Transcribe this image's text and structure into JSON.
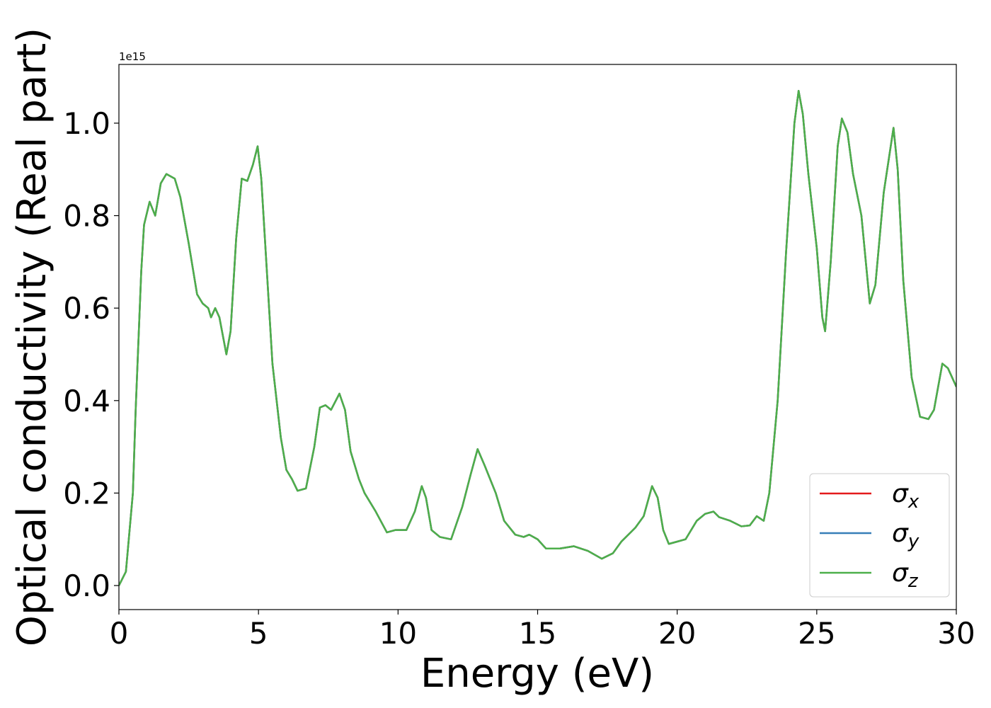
{
  "chart_data": {
    "type": "line",
    "xlabel": "Energy (eV)",
    "ylabel": "Optical conductivity (Real part)",
    "y_offset_label": "1e15",
    "x": [
      0,
      0.25,
      0.5,
      0.6,
      0.8,
      0.9,
      1.1,
      1.3,
      1.5,
      1.7,
      2.0,
      2.2,
      2.5,
      2.8,
      3.0,
      3.2,
      3.3,
      3.45,
      3.6,
      3.85,
      4.0,
      4.2,
      4.4,
      4.6,
      4.8,
      4.97,
      5.1,
      5.3,
      5.5,
      5.8,
      6.0,
      6.2,
      6.4,
      6.7,
      7.0,
      7.2,
      7.4,
      7.6,
      7.9,
      8.1,
      8.3,
      8.6,
      8.8,
      9.2,
      9.6,
      9.9,
      10.3,
      10.6,
      10.85,
      11.0,
      11.2,
      11.5,
      11.9,
      12.3,
      12.6,
      12.85,
      13.1,
      13.5,
      13.8,
      14.2,
      14.5,
      14.7,
      15.0,
      15.3,
      15.8,
      16.3,
      16.8,
      17.3,
      17.7,
      18.0,
      18.5,
      18.8,
      19.1,
      19.3,
      19.5,
      19.7,
      20.0,
      20.3,
      20.7,
      21.0,
      21.3,
      21.5,
      21.9,
      22.3,
      22.6,
      22.85,
      23.1,
      23.3,
      23.6,
      23.9,
      24.2,
      24.35,
      24.5,
      24.7,
      25.0,
      25.2,
      25.3,
      25.5,
      25.75,
      25.9,
      26.1,
      26.3,
      26.6,
      26.9,
      27.1,
      27.4,
      27.75,
      27.9,
      28.1,
      28.4,
      28.7,
      29.0,
      29.2,
      29.5,
      29.7,
      30.0
    ],
    "series": [
      {
        "name": "σx",
        "color": "#e41a1c",
        "values": [
          0,
          0.03,
          0.2,
          0.38,
          0.68,
          0.78,
          0.83,
          0.8,
          0.87,
          0.89,
          0.88,
          0.84,
          0.74,
          0.63,
          0.61,
          0.6,
          0.58,
          0.6,
          0.58,
          0.5,
          0.55,
          0.75,
          0.88,
          0.875,
          0.91,
          0.95,
          0.88,
          0.68,
          0.48,
          0.32,
          0.25,
          0.23,
          0.205,
          0.21,
          0.3,
          0.385,
          0.39,
          0.38,
          0.415,
          0.38,
          0.29,
          0.23,
          0.2,
          0.16,
          0.115,
          0.12,
          0.12,
          0.16,
          0.215,
          0.19,
          0.12,
          0.105,
          0.1,
          0.17,
          0.24,
          0.295,
          0.26,
          0.2,
          0.14,
          0.11,
          0.105,
          0.11,
          0.1,
          0.08,
          0.08,
          0.085,
          0.075,
          0.058,
          0.07,
          0.095,
          0.125,
          0.15,
          0.215,
          0.19,
          0.12,
          0.09,
          0.095,
          0.1,
          0.14,
          0.155,
          0.16,
          0.148,
          0.14,
          0.128,
          0.13,
          0.15,
          0.14,
          0.2,
          0.4,
          0.72,
          1.0,
          1.07,
          1.02,
          0.89,
          0.73,
          0.58,
          0.55,
          0.7,
          0.95,
          1.01,
          0.98,
          0.89,
          0.8,
          0.61,
          0.65,
          0.85,
          0.99,
          0.9,
          0.66,
          0.45,
          0.365,
          0.36,
          0.38,
          0.48,
          0.47,
          0.43
        ]
      },
      {
        "name": "σy",
        "color": "#377eb8",
        "values": [
          0,
          0.03,
          0.2,
          0.38,
          0.68,
          0.78,
          0.83,
          0.8,
          0.87,
          0.89,
          0.88,
          0.84,
          0.74,
          0.63,
          0.61,
          0.6,
          0.58,
          0.6,
          0.58,
          0.5,
          0.55,
          0.75,
          0.88,
          0.875,
          0.91,
          0.95,
          0.88,
          0.68,
          0.48,
          0.32,
          0.25,
          0.23,
          0.205,
          0.21,
          0.3,
          0.385,
          0.39,
          0.38,
          0.415,
          0.38,
          0.29,
          0.23,
          0.2,
          0.16,
          0.115,
          0.12,
          0.12,
          0.16,
          0.215,
          0.19,
          0.12,
          0.105,
          0.1,
          0.17,
          0.24,
          0.295,
          0.26,
          0.2,
          0.14,
          0.11,
          0.105,
          0.11,
          0.1,
          0.08,
          0.08,
          0.085,
          0.075,
          0.058,
          0.07,
          0.095,
          0.125,
          0.15,
          0.215,
          0.19,
          0.12,
          0.09,
          0.095,
          0.1,
          0.14,
          0.155,
          0.16,
          0.148,
          0.14,
          0.128,
          0.13,
          0.15,
          0.14,
          0.2,
          0.4,
          0.72,
          1.0,
          1.07,
          1.02,
          0.89,
          0.73,
          0.58,
          0.55,
          0.7,
          0.95,
          1.01,
          0.98,
          0.89,
          0.8,
          0.61,
          0.65,
          0.85,
          0.99,
          0.9,
          0.66,
          0.45,
          0.365,
          0.36,
          0.38,
          0.48,
          0.47,
          0.43
        ]
      },
      {
        "name": "σz",
        "color": "#4daf4a",
        "values": [
          0,
          0.03,
          0.2,
          0.38,
          0.68,
          0.78,
          0.83,
          0.8,
          0.87,
          0.89,
          0.88,
          0.84,
          0.74,
          0.63,
          0.61,
          0.6,
          0.58,
          0.6,
          0.58,
          0.5,
          0.55,
          0.75,
          0.88,
          0.875,
          0.91,
          0.95,
          0.88,
          0.68,
          0.48,
          0.32,
          0.25,
          0.23,
          0.205,
          0.21,
          0.3,
          0.385,
          0.39,
          0.38,
          0.415,
          0.38,
          0.29,
          0.23,
          0.2,
          0.16,
          0.115,
          0.12,
          0.12,
          0.16,
          0.215,
          0.19,
          0.12,
          0.105,
          0.1,
          0.17,
          0.24,
          0.295,
          0.26,
          0.2,
          0.14,
          0.11,
          0.105,
          0.11,
          0.1,
          0.08,
          0.08,
          0.085,
          0.075,
          0.058,
          0.07,
          0.095,
          0.125,
          0.15,
          0.215,
          0.19,
          0.12,
          0.09,
          0.095,
          0.1,
          0.14,
          0.155,
          0.16,
          0.148,
          0.14,
          0.128,
          0.13,
          0.15,
          0.14,
          0.2,
          0.4,
          0.72,
          1.0,
          1.07,
          1.02,
          0.89,
          0.73,
          0.58,
          0.55,
          0.7,
          0.95,
          1.01,
          0.98,
          0.89,
          0.8,
          0.61,
          0.65,
          0.85,
          0.99,
          0.9,
          0.66,
          0.45,
          0.365,
          0.36,
          0.38,
          0.48,
          0.47,
          0.43
        ]
      }
    ],
    "xlim": [
      0,
      30
    ],
    "xticks": [
      0,
      5,
      10,
      15,
      20,
      25,
      30
    ],
    "ylim": [
      -0.052,
      1.127
    ],
    "yticks": [
      {
        "value": 0,
        "label": "0.0"
      },
      0.2,
      0.4,
      0.6,
      0.8,
      {
        "value": 1,
        "label": "1.0"
      }
    ],
    "grid": false,
    "legend": "lower right"
  }
}
